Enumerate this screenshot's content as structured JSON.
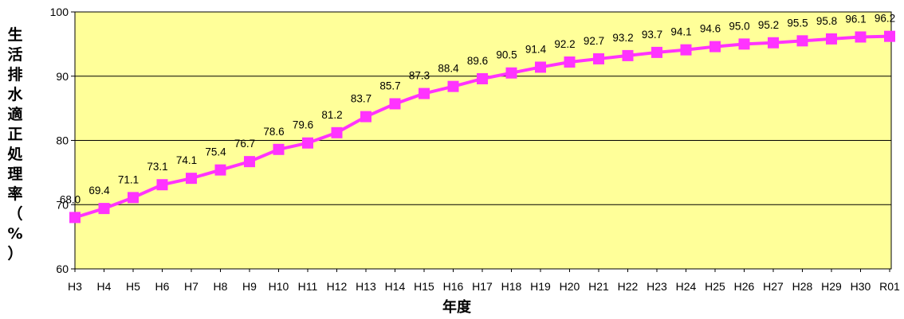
{
  "chart_data": {
    "type": "line",
    "title": "",
    "xlabel": "年度",
    "ylabel": "生活排水適正処理率（%）",
    "ylim": [
      60,
      100
    ],
    "yticks": [
      "60",
      "70",
      "80",
      "90",
      "100"
    ],
    "grid": true,
    "categories": [
      "H3",
      "H4",
      "H5",
      "H6",
      "H7",
      "H8",
      "H9",
      "H10",
      "H11",
      "H12",
      "H13",
      "H14",
      "H15",
      "H16",
      "H17",
      "H18",
      "H19",
      "H20",
      "H21",
      "H22",
      "H23",
      "H24",
      "H25",
      "H26",
      "H27",
      "H28",
      "H29",
      "H30",
      "R01"
    ],
    "series": [
      {
        "values": [
          68.0,
          69.4,
          71.1,
          73.1,
          74.1,
          75.4,
          76.7,
          78.6,
          79.6,
          81.2,
          83.7,
          85.7,
          87.3,
          88.4,
          89.6,
          90.5,
          91.4,
          92.2,
          92.7,
          93.2,
          93.7,
          94.1,
          94.6,
          95.0,
          95.2,
          95.5,
          95.8,
          96.1,
          96.2
        ],
        "labels": [
          "68.0",
          "69.4",
          "71.1",
          "73.1",
          "74.1",
          "75.4",
          "76.7",
          "78.6",
          "79.6",
          "81.2",
          "83.7",
          "85.7",
          "87.3",
          "88.4",
          "89.6",
          "90.5",
          "91.4",
          "92.2",
          "92.7",
          "93.2",
          "93.7",
          "94.1",
          "94.6",
          "95.0",
          "95.2",
          "95.5",
          "95.8",
          "96.1",
          "96.2"
        ]
      }
    ],
    "colors": {
      "plot_bg": "#ffff99",
      "line": "#ff33ff",
      "grid": "#000000"
    }
  }
}
